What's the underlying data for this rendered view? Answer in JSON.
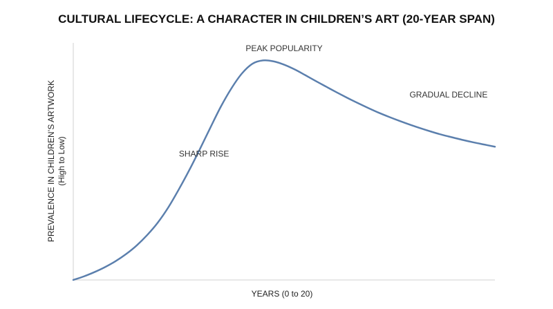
{
  "chart_data": {
    "type": "line",
    "title": "CULTURAL LIFECYCLE: A CHARACTER IN CHILDREN’S ART (20-YEAR SPAN)",
    "xlabel": "YEARS (0 to 20)",
    "ylabel": "PREVALENCE IN CHILDREN’S ARTWORK",
    "ylabel_sub": "(High to Low)",
    "xlim": [
      0,
      20
    ],
    "ylim": [
      0,
      100
    ],
    "grid": false,
    "x": [
      0,
      0.5,
      1,
      1.5,
      2,
      2.5,
      3,
      3.5,
      4,
      4.5,
      5,
      5.5,
      6,
      6.5,
      7,
      7.5,
      8,
      8.5,
      9,
      9.5,
      10,
      10.5,
      11,
      11.5,
      12,
      12.5,
      13,
      13.5,
      14,
      14.5,
      15,
      15.5,
      16,
      16.5,
      17,
      17.5,
      18,
      18.5,
      19,
      19.5,
      20
    ],
    "series": [
      {
        "color": "#5b7fad",
        "values": [
          0,
          1.5,
          3.3,
          5.4,
          7.9,
          10.9,
          14.5,
          18.9,
          24.1,
          30.5,
          38.1,
          46.3,
          55.1,
          64.2,
          73.1,
          80.8,
          87.1,
          91.2,
          92.6,
          92.2,
          90.8,
          88.8,
          86.4,
          83.9,
          81.5,
          79.1,
          76.8,
          74.6,
          72.5,
          70.5,
          68.7,
          67.0,
          65.4,
          63.9,
          62.5,
          61.2,
          60.1,
          59.0,
          58.0,
          57.1,
          56.2
        ]
      }
    ],
    "annotations": [
      {
        "text": "SHARP RISE",
        "x": 6.2,
        "y": 52
      },
      {
        "text": "PEAK POPULARITY",
        "x": 10.0,
        "y": 96.5
      },
      {
        "text": "GRADUAL DECLINE",
        "x": 17.8,
        "y": 77
      }
    ]
  }
}
